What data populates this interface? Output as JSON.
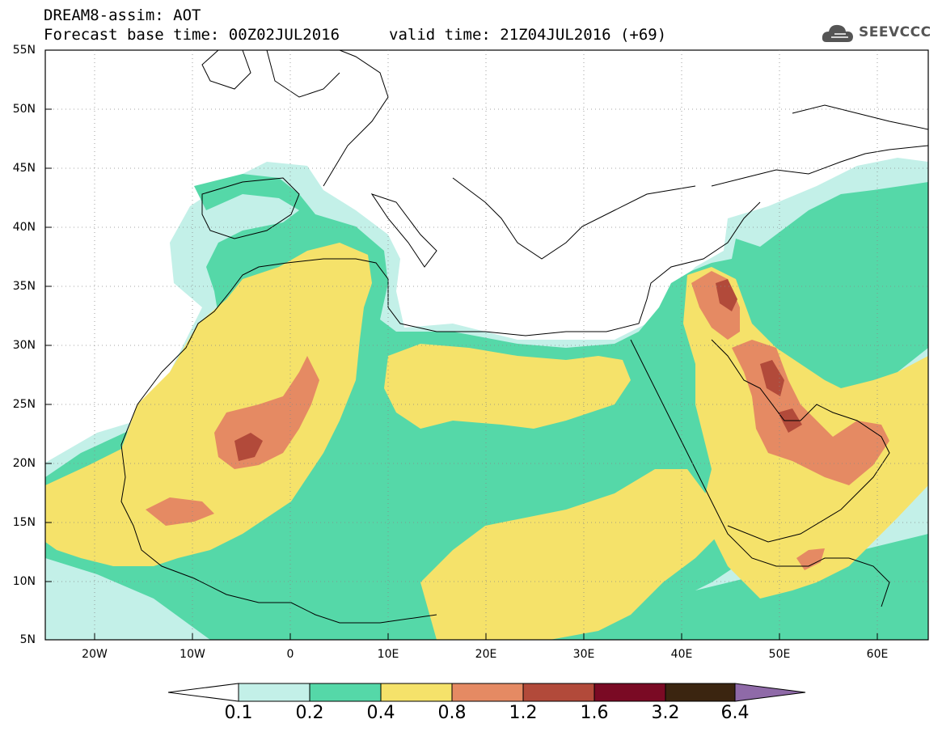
{
  "header": {
    "title_line1": "DREAM8-assim: AOT",
    "title_line2": "Forecast base time: 00Z02JUL2016",
    "valid_time": "valid time: 21Z04JUL2016 (+69)",
    "logo_text": "SEEVCCC"
  },
  "axes": {
    "lat_labels": [
      "55N",
      "50N",
      "45N",
      "40N",
      "35N",
      "30N",
      "25N",
      "20N",
      "15N",
      "10N",
      "5N"
    ],
    "lon_labels": [
      "20W",
      "10W",
      "0",
      "10E",
      "20E",
      "30E",
      "40E",
      "50E",
      "60E"
    ]
  },
  "colorbar": {
    "labels": [
      "0.1",
      "0.2",
      "0.4",
      "0.8",
      "1.2",
      "1.6",
      "3.2",
      "6.4"
    ],
    "colors": [
      "#ffffff",
      "#c3f0e8",
      "#55d8a8",
      "#f5e26a",
      "#e58a63",
      "#b24a3a",
      "#7a0a24",
      "#3b2510",
      "#8f6aa8"
    ]
  },
  "map_data": {
    "field": "Aerosol Optical Thickness",
    "lon_range": [
      -25,
      65
    ],
    "lat_range": [
      5,
      55
    ]
  }
}
